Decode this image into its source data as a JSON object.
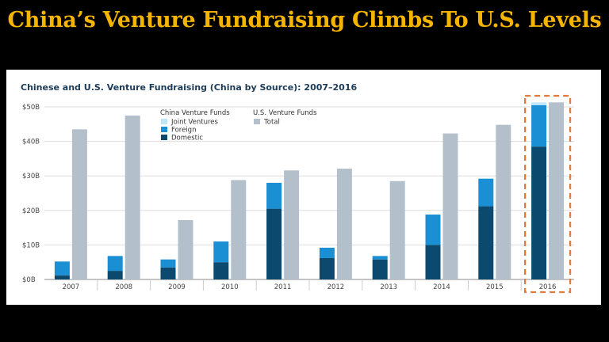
{
  "slide": {
    "title": "China’s Venture Fundraising Climbs To U.S. Levels"
  },
  "colors": {
    "domestic": "#0b4a6e",
    "foreign": "#1b8fd4",
    "joint_ventures": "#bfe6f7",
    "us_total": "#b3c0cc",
    "highlight": "#e07b39",
    "title": "#f5b400"
  },
  "chart_data": {
    "type": "bar",
    "title": "Chinese and U.S. Venture Fundraising (China by Source): 2007–2016",
    "categories": [
      "2007",
      "2008",
      "2009",
      "2010",
      "2011",
      "2012",
      "2013",
      "2014",
      "2015",
      "2016"
    ],
    "yticks": [
      "$0B",
      "$10B",
      "$20B",
      "$30B",
      "$40B",
      "$50B"
    ],
    "ylim": [
      0,
      50
    ],
    "grid": true,
    "legend": {
      "placement": "top-left",
      "china_heading": "China Venture Funds",
      "us_heading": "U.S. Venture Funds",
      "china_items": [
        "Joint Ventures",
        "Foreign",
        "Domestic"
      ],
      "us_items": [
        "Total"
      ]
    },
    "series": [
      {
        "name": "Domestic",
        "stack": "China",
        "values": [
          1.2,
          2.5,
          3.5,
          5.0,
          20.5,
          6.2,
          5.8,
          10.0,
          21.2,
          38.5
        ]
      },
      {
        "name": "Foreign",
        "stack": "China",
        "values": [
          4.0,
          4.3,
          2.3,
          6.0,
          7.5,
          3.0,
          1.0,
          8.8,
          8.0,
          12.0
        ]
      },
      {
        "name": "Joint Ventures",
        "stack": "China",
        "values": [
          0,
          0,
          0,
          0,
          0,
          0,
          0,
          0,
          0,
          0.8
        ]
      },
      {
        "name": "Total",
        "stack": "U.S.",
        "values": [
          43.5,
          47.5,
          17.2,
          28.8,
          31.6,
          32.1,
          28.5,
          42.3,
          44.8,
          51.3
        ]
      }
    ],
    "highlight_category": "2016"
  }
}
